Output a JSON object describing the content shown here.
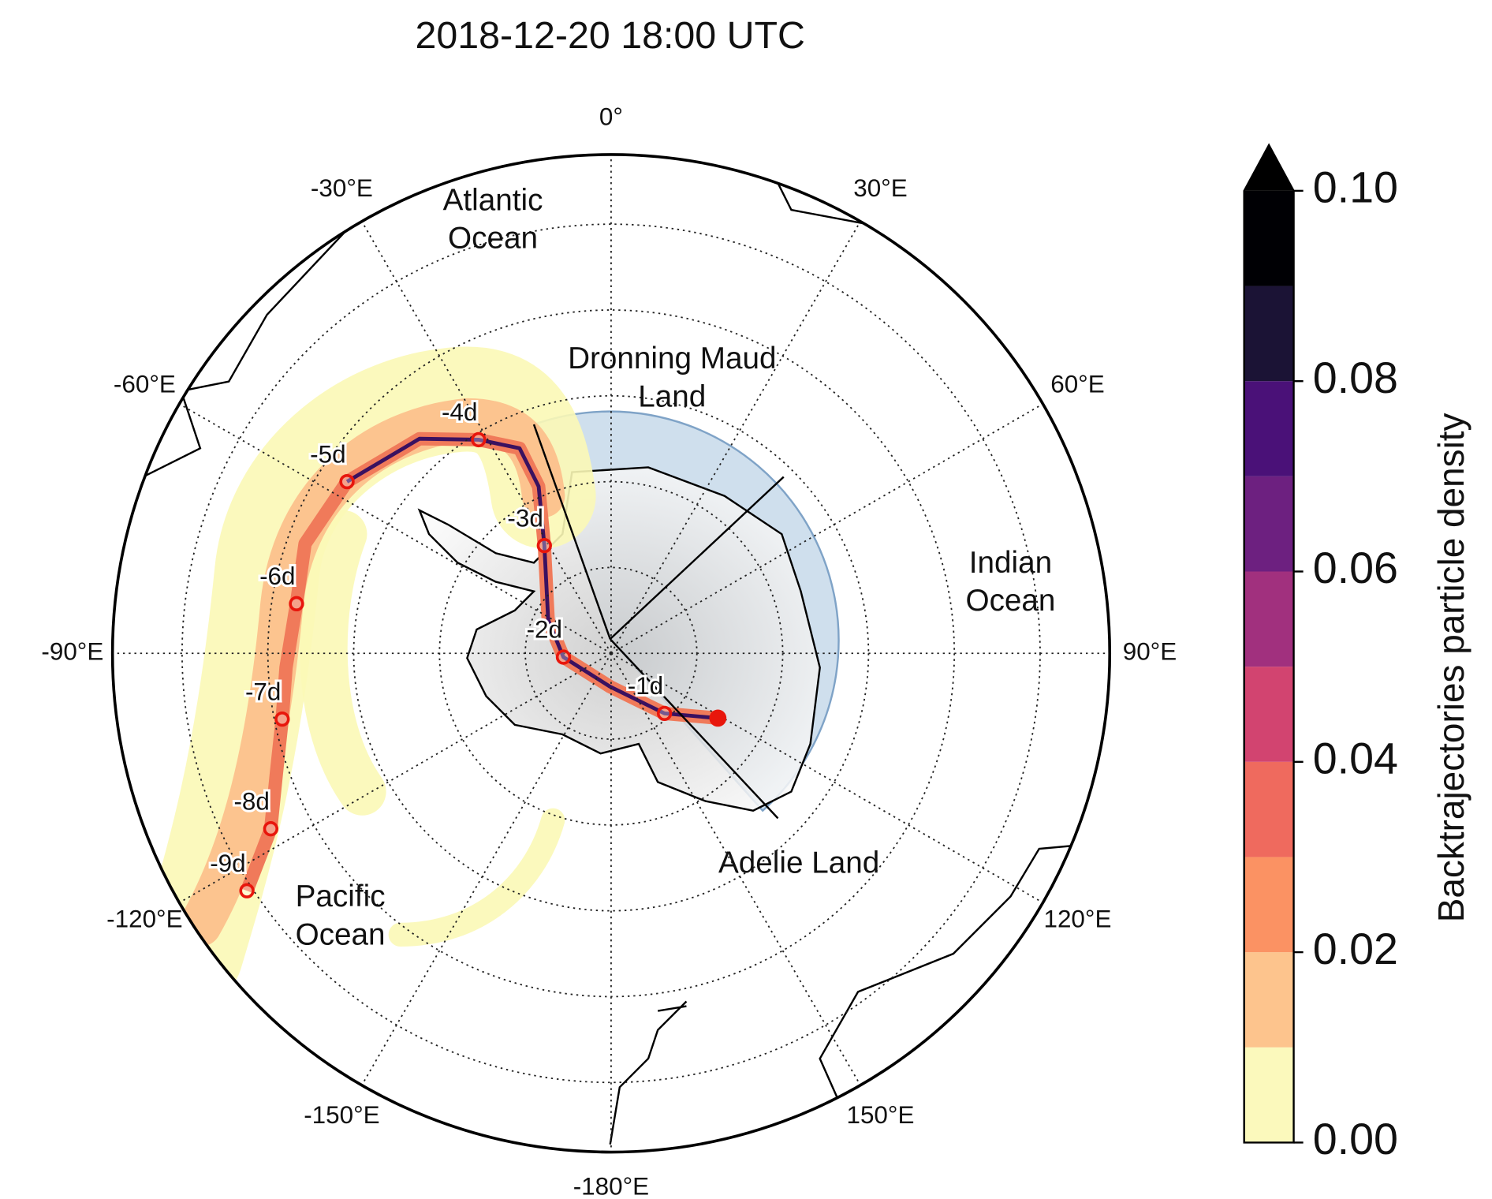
{
  "title": "2018-12-20 18:00 UTC",
  "meridians": [
    {
      "value": 0,
      "label": "0°"
    },
    {
      "value": 30,
      "label": "30°E"
    },
    {
      "value": 60,
      "label": "60°E"
    },
    {
      "value": 90,
      "label": "90°E"
    },
    {
      "value": 120,
      "label": "120°E"
    },
    {
      "value": 150,
      "label": "150°E"
    },
    {
      "value": -180,
      "label": "-180°E"
    },
    {
      "value": -150,
      "label": "-150°E"
    },
    {
      "value": -120,
      "label": "-120°E"
    },
    {
      "value": -90,
      "label": "-90°E"
    },
    {
      "value": -60,
      "label": "-60°E"
    },
    {
      "value": -30,
      "label": "-30°E"
    }
  ],
  "regions": [
    {
      "lines": [
        "Atlantic",
        "Ocean"
      ]
    },
    {
      "lines": [
        "Dronning Maud",
        "Land"
      ]
    },
    {
      "lines": [
        "Indian",
        "Ocean"
      ]
    },
    {
      "lines": [
        "Adelie Land"
      ]
    },
    {
      "lines": [
        "Pacific",
        "Ocean"
      ]
    }
  ],
  "markers": [
    "-1d",
    "-2d",
    "-3d",
    "-4d",
    "-5d",
    "-6d",
    "-7d",
    "-8d",
    "-9d"
  ],
  "colorbar": {
    "label": "Backtrajectories particle density",
    "levels": [
      0,
      0.01,
      0.02,
      0.03,
      0.04,
      0.05,
      0.06,
      0.07,
      0.08,
      0.09,
      0.1
    ],
    "colors": [
      "#fbf9bc",
      "#fdc48d",
      "#fb9263",
      "#ef6a5e",
      "#d24470",
      "#a1307e",
      "#6d2080",
      "#4a1178",
      "#1b1335",
      "#000004"
    ],
    "ticks": [
      {
        "value": 0,
        "label": "0.00"
      },
      {
        "value": 0.02,
        "label": "0.02"
      },
      {
        "value": 0.04,
        "label": "0.04"
      },
      {
        "value": 0.06,
        "label": "0.06"
      },
      {
        "value": 0.08,
        "label": "0.08"
      },
      {
        "value": 0.1,
        "label": "0.10"
      }
    ]
  }
}
